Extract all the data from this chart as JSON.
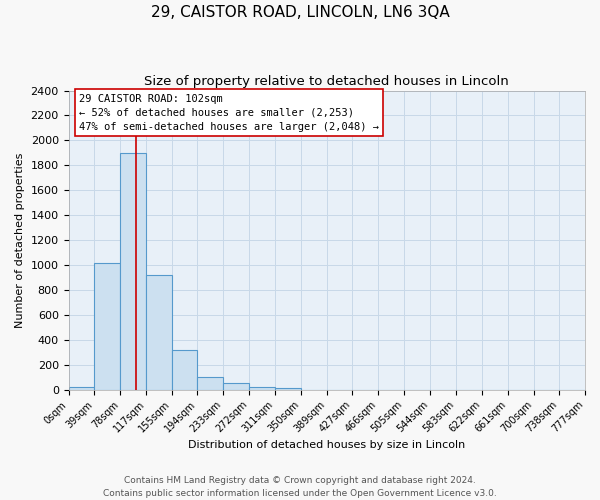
{
  "title": "29, CAISTOR ROAD, LINCOLN, LN6 3QA",
  "subtitle": "Size of property relative to detached houses in Lincoln",
  "xlabel": "Distribution of detached houses by size in Lincoln",
  "ylabel": "Number of detached properties",
  "bar_edges": [
    0,
    39,
    78,
    117,
    155,
    194,
    233,
    272,
    311,
    350,
    389,
    427,
    466,
    505,
    544,
    583,
    622,
    661,
    700,
    738,
    777
  ],
  "bar_heights": [
    20,
    1020,
    1900,
    920,
    320,
    105,
    50,
    20,
    10,
    0,
    0,
    0,
    0,
    0,
    0,
    0,
    0,
    0,
    0,
    0
  ],
  "bar_color": "#cce0f0",
  "bar_edge_color": "#5599cc",
  "bar_linewidth": 0.8,
  "vline_x": 102,
  "vline_color": "#cc0000",
  "vline_linewidth": 1.2,
  "ylim": [
    0,
    2400
  ],
  "yticks": [
    0,
    200,
    400,
    600,
    800,
    1000,
    1200,
    1400,
    1600,
    1800,
    2000,
    2200,
    2400
  ],
  "xtick_labels": [
    "0sqm",
    "39sqm",
    "78sqm",
    "117sqm",
    "155sqm",
    "194sqm",
    "233sqm",
    "272sqm",
    "311sqm",
    "350sqm",
    "389sqm",
    "427sqm",
    "466sqm",
    "505sqm",
    "544sqm",
    "583sqm",
    "622sqm",
    "661sqm",
    "700sqm",
    "738sqm",
    "777sqm"
  ],
  "annotation_box_text": "29 CAISTOR ROAD: 102sqm\n← 52% of detached houses are smaller (2,253)\n47% of semi-detached houses are larger (2,048) →",
  "annotation_box_facecolor": "#ffffff",
  "annotation_box_edgecolor": "#cc0000",
  "grid_color": "#c8d8e8",
  "background_color": "#e8f0f8",
  "fig_facecolor": "#f8f8f8",
  "footer_line1": "Contains HM Land Registry data © Crown copyright and database right 2024.",
  "footer_line2": "Contains public sector information licensed under the Open Government Licence v3.0.",
  "title_fontsize": 11,
  "subtitle_fontsize": 9.5,
  "footer_fontsize": 6.5,
  "ylabel_fontsize": 8,
  "xlabel_fontsize": 8,
  "ytick_fontsize": 8,
  "xtick_fontsize": 7,
  "annotation_fontsize": 7.5
}
